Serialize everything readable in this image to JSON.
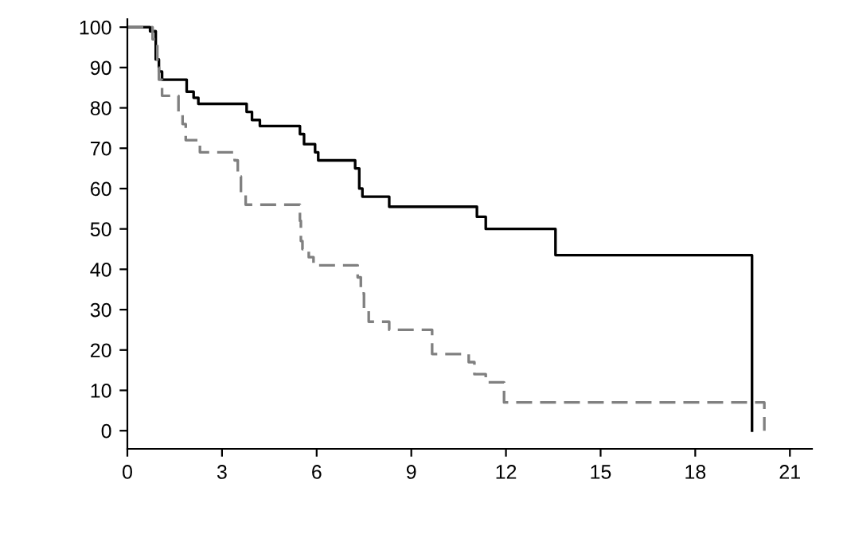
{
  "chart_data": {
    "type": "step",
    "series": [
      {
        "color": "#000000",
        "line_style": "solid",
        "x": [
          0,
          0.72,
          0.9,
          1.0,
          1.1,
          1.2,
          1.88,
          2.1,
          2.25,
          3.78,
          3.95,
          4.2,
          5.47,
          5.6,
          5.95,
          6.05,
          7.22,
          7.35,
          7.45,
          8.3,
          11.08,
          11.36,
          13.57,
          19.8,
          19.8
        ],
        "values": [
          100,
          99,
          92,
          89,
          87,
          87,
          84,
          82.5,
          81,
          79,
          77,
          75.5,
          73.5,
          71,
          69,
          67,
          65,
          60,
          58,
          55.5,
          53,
          50,
          43.5,
          0,
          0
        ]
      },
      {
        "color": "#808080",
        "line_style": "dashed",
        "x": [
          0,
          0.8,
          0.95,
          1.0,
          1.1,
          1.3,
          1.62,
          1.75,
          1.85,
          1.95,
          2.3,
          3.4,
          3.5,
          3.6,
          3.75,
          5.47,
          5.5,
          5.55,
          5.75,
          5.9,
          7.3,
          7.4,
          7.5,
          7.65,
          7.95,
          8.3,
          9.66,
          10.82,
          11.0,
          11.36,
          11.94,
          20.19,
          20.19
        ],
        "values": [
          100,
          97,
          90,
          87,
          83,
          83,
          79,
          76,
          72,
          72,
          69,
          67,
          63,
          59,
          56,
          52,
          47,
          45,
          43,
          41,
          38,
          34,
          30,
          27,
          27,
          25,
          19,
          17,
          14,
          12,
          7,
          0,
          0
        ]
      }
    ],
    "xlim": [
      0,
      21.7
    ],
    "xticks": [
      0,
      3,
      6,
      9,
      12,
      15,
      18,
      21
    ],
    "ylim": [
      -4.5,
      102
    ],
    "yticks": [
      0,
      10,
      20,
      30,
      40,
      50,
      60,
      70,
      80,
      90,
      100
    ],
    "grid": false,
    "legend": false
  }
}
